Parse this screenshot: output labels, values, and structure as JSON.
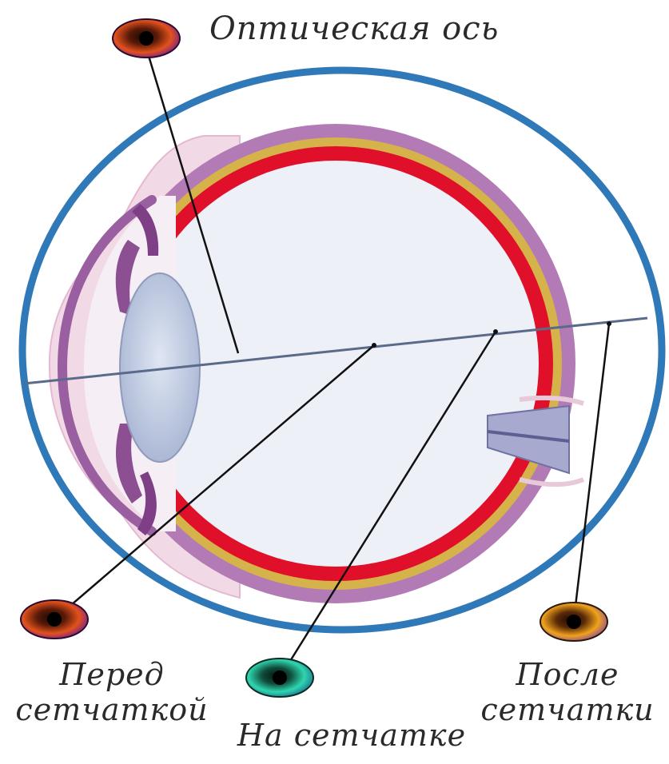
{
  "labels": {
    "optic_axis": "Оптическая ось",
    "before_line1": "Перед",
    "before_line2": "сетчаткой",
    "on_retina": "На сетчатке",
    "after_line1": "После",
    "after_line2": "сетчатки"
  },
  "colors": {
    "outer_ring": "#2f79b8",
    "sclera": "#b37bb5",
    "choroid": "#d6b34a",
    "retina": "#e0102a",
    "lens": "#c9d3e6",
    "optic_nerve": "#8f92c0",
    "pointer_line": "#111111",
    "axis_line": "#5a6a8a"
  },
  "icons": [
    "eye-marker-red",
    "eye-marker-red",
    "eye-marker-teal",
    "eye-marker-gold"
  ]
}
